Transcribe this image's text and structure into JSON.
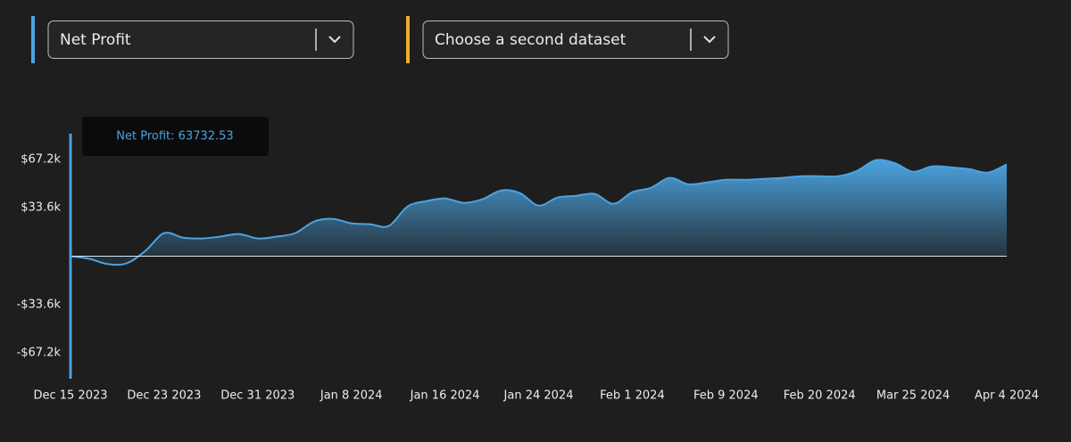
{
  "controls": {
    "dropdowns": [
      {
        "label": "Net Profit",
        "accent": "#4ba3e0"
      },
      {
        "label": "Choose a second dataset",
        "accent": "#f0ac2e"
      }
    ]
  },
  "chart_data": {
    "type": "area",
    "tooltip": "Net Profit: 63732.53",
    "color": "#4ba3e0",
    "categories": [
      "Dec 15 2023",
      null,
      null,
      null,
      null,
      "Dec 23 2023",
      null,
      null,
      null,
      null,
      "Dec 31 2023",
      null,
      null,
      null,
      null,
      "Jan 8 2024",
      null,
      null,
      null,
      null,
      "Jan 16 2024",
      null,
      null,
      null,
      null,
      "Jan 24 2024",
      null,
      null,
      null,
      null,
      "Feb 1 2024",
      null,
      null,
      null,
      null,
      "Feb 9 2024",
      null,
      null,
      null,
      null,
      "Feb 20 2024",
      null,
      null,
      null,
      null,
      "Mar 25 2024",
      null,
      null,
      null,
      null,
      "Apr 4 2024"
    ],
    "values": [
      0,
      -1800,
      -5500,
      -4900,
      3700,
      16000,
      12900,
      12300,
      13600,
      15400,
      12300,
      13600,
      16000,
      24000,
      25900,
      22800,
      22200,
      21000,
      34500,
      38200,
      40100,
      37000,
      39500,
      45600,
      43800,
      35100,
      40700,
      41900,
      43200,
      36400,
      44400,
      47500,
      54300,
      49900,
      51200,
      53000,
      53000,
      53600,
      54300,
      55500,
      55500,
      55500,
      59200,
      66600,
      64700,
      58600,
      62300,
      61700,
      60400,
      58000,
      63732.53
    ],
    "ylim": [
      -85000,
      85000
    ],
    "yticks": [
      {
        "value": 67200,
        "label": "$67.2k"
      },
      {
        "value": 33600,
        "label": "$33.6k"
      },
      {
        "value": -33600,
        "label": "-$33.6k"
      },
      {
        "value": -67200,
        "label": "-$67.2k"
      }
    ]
  }
}
